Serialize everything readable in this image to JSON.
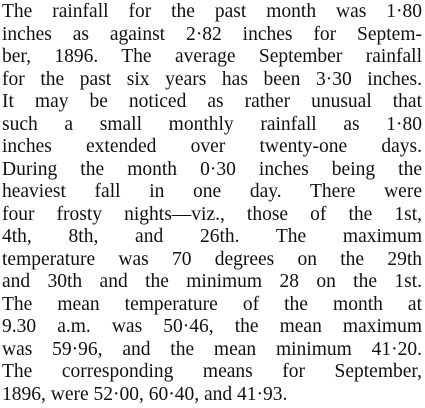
{
  "paragraph": {
    "lines": [
      "The rainfall for the past month was 1·80",
      "inches as against 2·82 inches for Septem-",
      "ber, 1896. The average September rainfall",
      "for the past six years has been 3·30 inches.",
      "It may be noticed as rather unusual that",
      "such a small monthly rainfall as 1·80",
      "inches extended over twenty-one days.",
      "During the month 0·30 inches being the",
      "heaviest fall in one day. There were",
      "four frosty nights—viz., those of the 1st,",
      "4th, 8th, and 26th. The maximum",
      "temperature was 70 degrees on the 29th",
      "and 30th and the minimum 28 on the 1st.",
      "The mean temperature of the month at",
      "9.30 a.m. was 50·46, the mean maximum",
      "was 59·96, and the mean minimum 41·20.",
      "The corresponding means for September,",
      "1896, were 52·00, 60·40, and 41·93."
    ]
  }
}
